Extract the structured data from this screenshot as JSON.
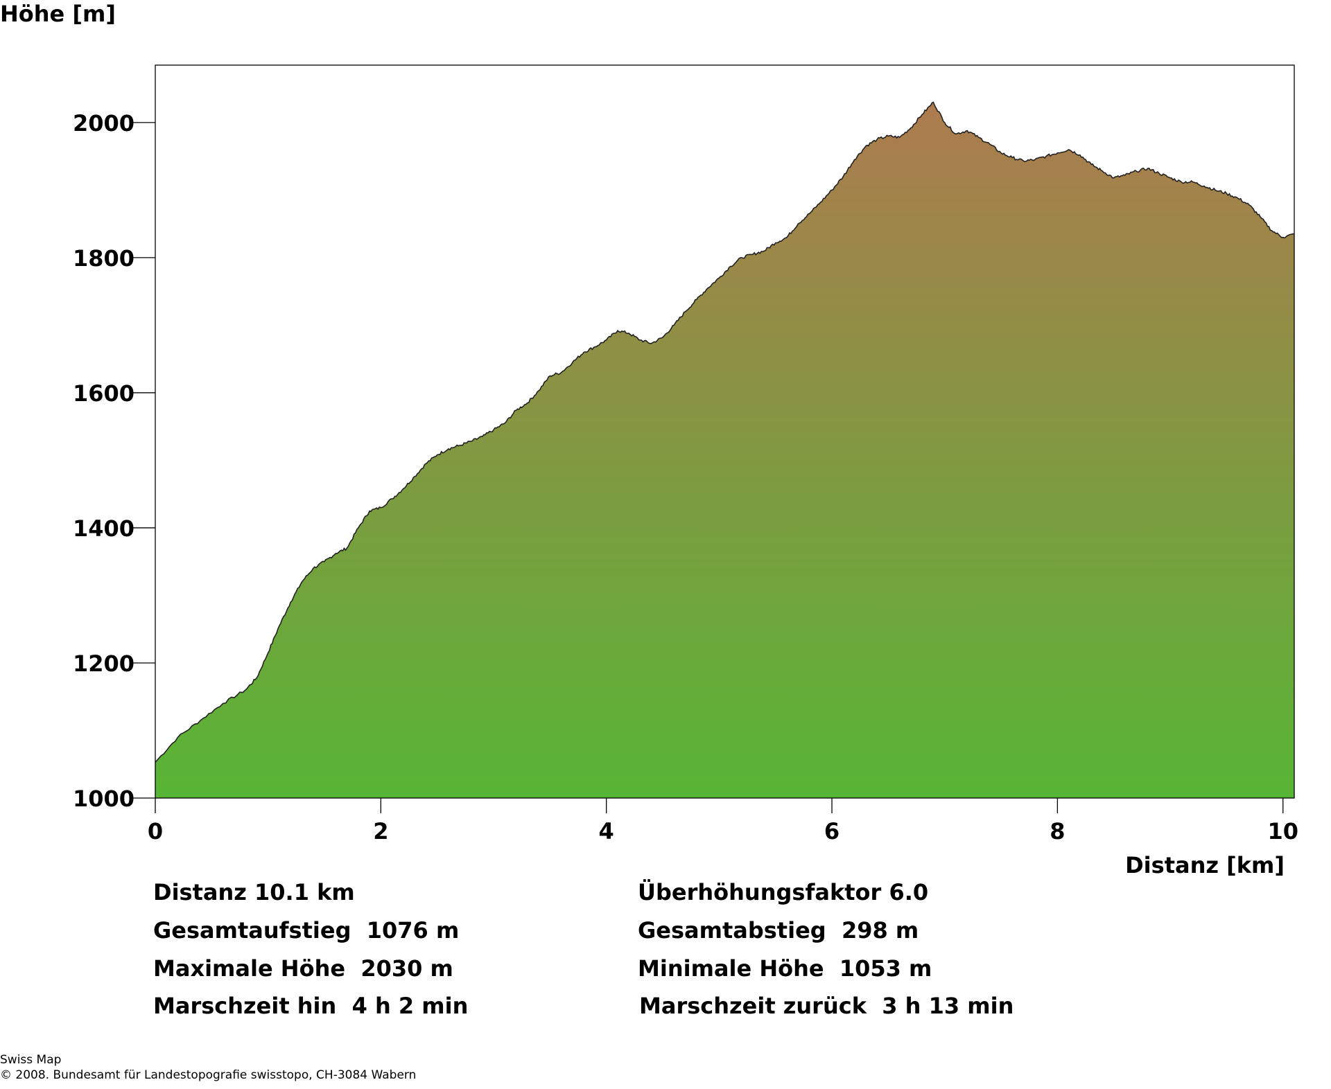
{
  "chart_data": {
    "type": "area",
    "xlabel": "Distanz [km]",
    "ylabel": "Höhe [m]",
    "xlim": [
      0,
      10.1
    ],
    "ylim": [
      1000,
      2085
    ],
    "x_ticks": [
      0,
      2,
      4,
      6,
      8,
      10
    ],
    "y_ticks": [
      1000,
      1200,
      1400,
      1600,
      1800,
      2000
    ],
    "grid": false,
    "fill_gradient": [
      "#57b535",
      "#ad7b4e"
    ],
    "x": [
      0,
      0.2,
      0.4,
      0.6,
      0.8,
      0.9,
      1.0,
      1.1,
      1.2,
      1.3,
      1.4,
      1.5,
      1.6,
      1.7,
      1.8,
      1.9,
      2.0,
      2.1,
      2.2,
      2.3,
      2.4,
      2.5,
      2.6,
      2.7,
      2.8,
      2.9,
      3.0,
      3.1,
      3.2,
      3.3,
      3.4,
      3.5,
      3.6,
      3.7,
      3.8,
      3.9,
      4.0,
      4.1,
      4.2,
      4.3,
      4.4,
      4.5,
      4.6,
      4.7,
      4.8,
      4.9,
      5.0,
      5.1,
      5.2,
      5.3,
      5.4,
      5.5,
      5.6,
      5.7,
      5.8,
      5.9,
      6.0,
      6.1,
      6.2,
      6.3,
      6.4,
      6.5,
      6.6,
      6.7,
      6.8,
      6.9,
      7.0,
      7.1,
      7.2,
      7.3,
      7.4,
      7.5,
      7.6,
      7.7,
      7.8,
      7.9,
      8.0,
      8.1,
      8.2,
      8.3,
      8.4,
      8.5,
      8.6,
      8.7,
      8.8,
      8.9,
      9.0,
      9.1,
      9.2,
      9.3,
      9.4,
      9.5,
      9.6,
      9.7,
      9.8,
      9.9,
      10.0,
      10.1
    ],
    "y": [
      1053,
      1090,
      1115,
      1140,
      1160,
      1178,
      1215,
      1255,
      1290,
      1320,
      1340,
      1350,
      1362,
      1370,
      1400,
      1425,
      1430,
      1443,
      1458,
      1476,
      1495,
      1508,
      1517,
      1522,
      1528,
      1535,
      1545,
      1555,
      1574,
      1585,
      1603,
      1625,
      1630,
      1645,
      1660,
      1668,
      1678,
      1692,
      1688,
      1678,
      1673,
      1682,
      1700,
      1720,
      1738,
      1755,
      1770,
      1787,
      1800,
      1805,
      1810,
      1822,
      1830,
      1850,
      1865,
      1882,
      1900,
      1920,
      1945,
      1965,
      1975,
      1980,
      1978,
      1992,
      2012,
      2030,
      2000,
      1983,
      1988,
      1978,
      1968,
      1955,
      1948,
      1943,
      1945,
      1950,
      1955,
      1960,
      1952,
      1938,
      1928,
      1918,
      1922,
      1928,
      1932,
      1925,
      1918,
      1912,
      1912,
      1906,
      1900,
      1895,
      1888,
      1878,
      1860,
      1840,
      1830,
      1835
    ]
  },
  "stats": {
    "left": [
      "Distanz 10.1 km",
      "Gesamtaufstieg  1076 m",
      "Maximale Höhe  2030 m",
      "Marschzeit hin  4 h 2 min"
    ],
    "right": [
      "Überhöhungsfaktor 6.0",
      "Gesamtabstieg  298 m",
      "Minimale Höhe  1053 m",
      "Marschzeit zurück  3 h 13 min"
    ]
  },
  "footer": {
    "line1": "Swiss Map",
    "line2": "© 2008. Bundesamt für Landestopografie swisstopo, CH-3084 Wabern"
  }
}
